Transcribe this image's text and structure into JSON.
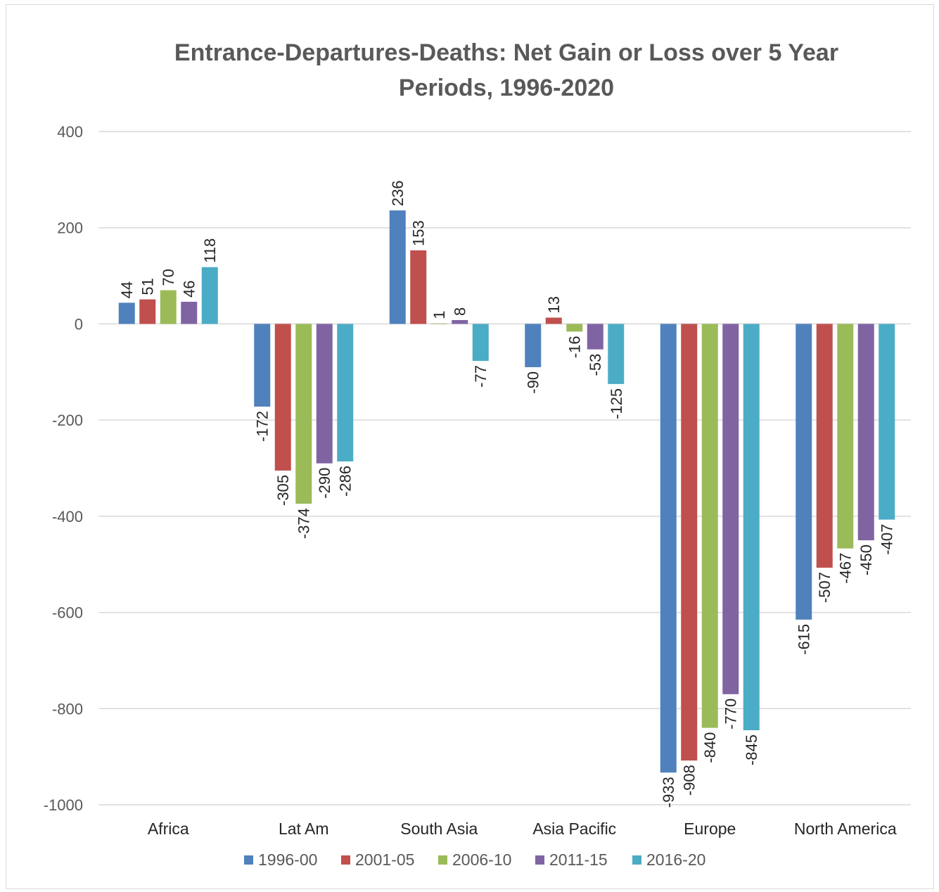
{
  "chart_data": {
    "type": "bar",
    "title_line1": "Entrance-Departures-Deaths: Net Gain or Loss over 5 Year",
    "title_line2": "Periods, 1996-2020",
    "categories": [
      "Africa",
      "Lat Am",
      "South Asia",
      "Asia Pacific",
      "Europe",
      "North America"
    ],
    "series": [
      {
        "name": "1996-00",
        "color": "#4f81bd",
        "values": [
          44,
          -172,
          236,
          -90,
          -933,
          -615
        ]
      },
      {
        "name": "2001-05",
        "color": "#c0504d",
        "values": [
          51,
          -305,
          153,
          13,
          -908,
          -507
        ]
      },
      {
        "name": "2006-10",
        "color": "#9bbb59",
        "values": [
          70,
          -374,
          1,
          -16,
          -840,
          -467
        ]
      },
      {
        "name": "2011-15",
        "color": "#8064a2",
        "values": [
          46,
          -290,
          8,
          -53,
          -770,
          -450
        ]
      },
      {
        "name": "2016-20",
        "color": "#4bacc6",
        "values": [
          118,
          -286,
          -77,
          -125,
          -845,
          -407
        ]
      }
    ],
    "ylim": [
      -1000,
      400
    ],
    "yticks": [
      "400",
      "200",
      "0",
      "-200",
      "-400",
      "-600",
      "-800",
      "-1000"
    ],
    "grid": true,
    "legend_position": "bottom"
  }
}
